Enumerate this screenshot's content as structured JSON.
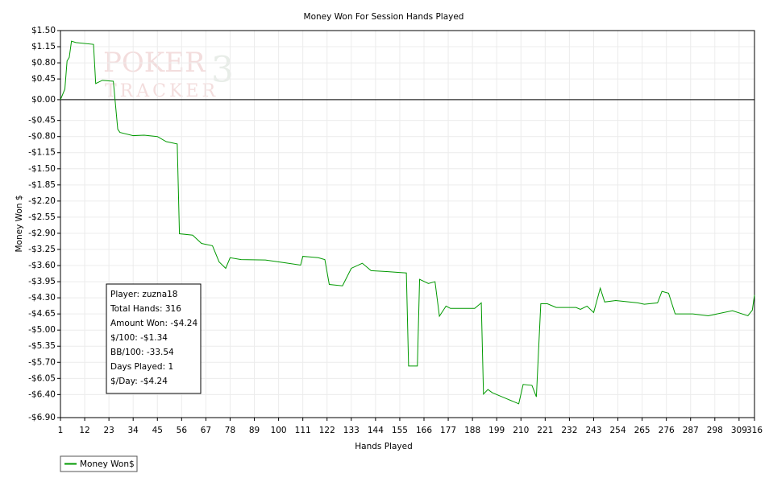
{
  "chart_data": {
    "type": "line",
    "title": "Money Won For Session Hands Played",
    "x_label": "Hands Played",
    "y_label": "Money Won $",
    "watermark": [
      "POKER",
      "TRACKER",
      "3"
    ],
    "annotations": [
      "Player: zuzna18",
      "Total Hands: 316",
      "Amount Won: -$4.24",
      "$/100: -$1.34",
      "BB/100: -33.54",
      "Days Played: 1",
      "$/Day: -$4.24"
    ],
    "x": [
      1,
      3,
      4,
      5,
      6,
      8,
      16,
      17,
      20,
      25,
      27,
      28,
      34,
      39,
      45,
      49,
      54,
      55,
      61,
      65,
      70,
      73,
      76,
      78,
      83,
      94,
      103,
      110,
      111,
      118,
      121,
      123,
      129,
      133,
      138,
      142,
      149,
      158,
      159,
      163,
      164,
      168,
      171,
      173,
      176,
      178,
      189,
      192,
      193,
      195,
      197,
      202,
      209,
      211,
      215,
      217,
      219,
      222,
      226,
      235,
      237,
      240,
      243,
      246,
      248,
      253,
      263,
      266,
      272,
      274,
      277,
      280,
      288,
      295,
      306,
      313,
      315,
      316
    ],
    "series": [
      {
        "name": "Money Won$",
        "color": "#009900",
        "values": [
          0,
          0.23,
          0.84,
          0.92,
          1.27,
          1.24,
          1.2,
          0.35,
          0.42,
          0.4,
          -0.64,
          -0.71,
          -0.78,
          -0.77,
          -0.8,
          -0.91,
          -0.96,
          -2.91,
          -2.94,
          -3.12,
          -3.17,
          -3.52,
          -3.66,
          -3.43,
          -3.47,
          -3.48,
          -3.54,
          -3.59,
          -3.4,
          -3.43,
          -3.47,
          -4.01,
          -4.04,
          -3.66,
          -3.55,
          -3.71,
          -3.73,
          -3.76,
          -5.78,
          -5.78,
          -3.9,
          -3.99,
          -3.95,
          -4.7,
          -4.48,
          -4.53,
          -4.53,
          -4.41,
          -6.39,
          -6.29,
          -6.36,
          -6.46,
          -6.6,
          -6.18,
          -6.2,
          -6.45,
          -4.43,
          -4.43,
          -4.51,
          -4.51,
          -4.55,
          -4.48,
          -4.62,
          -4.09,
          -4.39,
          -4.36,
          -4.41,
          -4.44,
          -4.41,
          -4.16,
          -4.2,
          -4.65,
          -4.65,
          -4.69,
          -4.58,
          -4.69,
          -4.57,
          -4.24
        ]
      }
    ],
    "xlim": [
      1,
      316
    ],
    "xticks": [
      1,
      12,
      23,
      34,
      45,
      56,
      67,
      78,
      89,
      100,
      111,
      122,
      133,
      144,
      155,
      166,
      177,
      188,
      199,
      210,
      221,
      232,
      243,
      254,
      265,
      276,
      287,
      298,
      309,
      316
    ],
    "ylim": [
      -6.9,
      1.5
    ],
    "yticks": [
      {
        "value": 1.5,
        "label": "$1.50"
      },
      {
        "value": 1.15,
        "label": "$1.15"
      },
      {
        "value": 0.8,
        "label": "$0.80"
      },
      {
        "value": 0.45,
        "label": "$0.45"
      },
      {
        "value": 0,
        "label": "$0.00"
      },
      {
        "value": -0.45,
        "label": "-$0.45"
      },
      {
        "value": -0.8,
        "label": "-$0.80"
      },
      {
        "value": -1.15,
        "label": "-$1.15"
      },
      {
        "value": -1.5,
        "label": "-$1.50"
      },
      {
        "value": -1.85,
        "label": "-$1.85"
      },
      {
        "value": -2.2,
        "label": "-$2.20"
      },
      {
        "value": -2.55,
        "label": "-$2.55"
      },
      {
        "value": -2.9,
        "label": "-$2.90"
      },
      {
        "value": -3.25,
        "label": "-$3.25"
      },
      {
        "value": -3.6,
        "label": "-$3.60"
      },
      {
        "value": -3.95,
        "label": "-$3.95"
      },
      {
        "value": -4.3,
        "label": "-$4.30"
      },
      {
        "value": -4.65,
        "label": "-$4.65"
      },
      {
        "value": -5,
        "label": "-$5.00"
      },
      {
        "value": -5.35,
        "label": "-$5.35"
      },
      {
        "value": -5.7,
        "label": "-$5.70"
      },
      {
        "value": -6.05,
        "label": "-$6.05"
      },
      {
        "value": -6.4,
        "label": "-$6.40"
      },
      {
        "value": -6.9,
        "label": "-$6.90"
      }
    ],
    "grid": true
  }
}
